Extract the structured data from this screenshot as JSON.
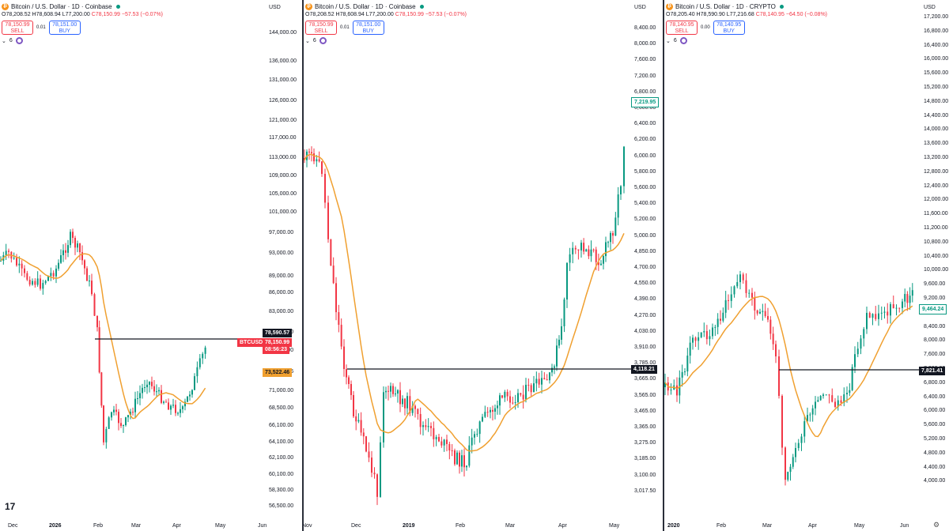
{
  "panels": [
    {
      "title": "Bitcoin / U.S. Dollar · 1D · Coinbase",
      "ohlc": {
        "o": "O78,208.52",
        "h": "H78,608.94",
        "l": "L77,200.00",
        "c": "C78,150.99",
        "chg": "−57.53 (−0.07%)"
      },
      "sell": {
        "price": "78,150.99",
        "label": "SELL"
      },
      "buy": {
        "price": "78,151.00",
        "label": "BUY"
      },
      "spread": "0.01",
      "indicator_count": "6",
      "currency": "USD",
      "price_ticks": [
        "144,000.00",
        "136,000.00",
        "131,000.00",
        "126,000.00",
        "121,000.00",
        "117,000.00",
        "113,000.00",
        "109,000.00",
        "105,000.00",
        "101,000.00",
        "97,000.00",
        "93,000.00",
        "89,000.00",
        "86,000.00",
        "83,000.00",
        "80,000.00",
        "77,000.00",
        "73,522.46",
        "71,000.00",
        "68,500.00",
        "66,100.00",
        "64,100.00",
        "62,100.00",
        "60,100.00",
        "58,300.00",
        "56,500.00"
      ],
      "date_ticks": [
        "Dec",
        "2026",
        "Feb",
        "Mar",
        "Apr",
        "May",
        "Jun"
      ],
      "tags": {
        "line_value": "78,590.57",
        "symbol": "BTCUSD",
        "last_price": "78,150.99",
        "countdown": "08:56:23",
        "ma_value": "73,522.46"
      }
    },
    {
      "title": "Bitcoin / U.S. Dollar · 1D · Coinbase",
      "ohlc": {
        "o": "O78,208.52",
        "h": "H78,608.94",
        "l": "L77,200.00",
        "c": "C78,150.99",
        "chg": "−57.53 (−0.07%)"
      },
      "sell": {
        "price": "78,150.99",
        "label": "SELL"
      },
      "buy": {
        "price": "78,151.00",
        "label": "BUY"
      },
      "spread": "0.01",
      "indicator_count": "6",
      "currency": "USD",
      "price_ticks": [
        "8,400.00",
        "8,000.00",
        "7,600.00",
        "7,200.00",
        "6,800.00",
        "6,600.00",
        "6,400.00",
        "6,200.00",
        "6,000.00",
        "5,800.00",
        "5,600.00",
        "5,400.00",
        "5,200.00",
        "5,000.00",
        "4,850.00",
        "4,700.00",
        "4,550.00",
        "4,390.00",
        "4,270.00",
        "4,030.00",
        "3,910.00",
        "3,785.00",
        "3,665.00",
        "3,565.00",
        "3,465.00",
        "3,365.00",
        "3,275.00",
        "3,185.00",
        "3,100.00",
        "3,017.50"
      ],
      "date_ticks": [
        "Nov",
        "Dec",
        "2019",
        "Feb",
        "Mar",
        "Apr",
        "May"
      ],
      "tags": {
        "top_value": "7,219.95",
        "line_value": "4,118.21"
      }
    },
    {
      "title": "Bitcoin / U.S. Dollar · 1D · CRYPTO",
      "ohlc": {
        "o": "O78,205.40",
        "h": "H78,590.90",
        "l": "L77,216.68",
        "c": "C78,140.95",
        "chg": "−64.50 (−0.08%)"
      },
      "sell": {
        "price": "78,140.95",
        "label": "SELL"
      },
      "buy": {
        "price": "78,140.95",
        "label": "BUY"
      },
      "spread": "0.00",
      "indicator_count": "6",
      "currency": "USD",
      "price_ticks": [
        "17,200.00",
        "16,800.00",
        "16,400.00",
        "16,000.00",
        "15,600.00",
        "15,200.00",
        "14,800.00",
        "14,400.00",
        "14,000.00",
        "13,600.00",
        "13,200.00",
        "12,800.00",
        "12,400.00",
        "12,000.00",
        "11,600.00",
        "11,200.00",
        "10,800.00",
        "10,400.00",
        "10,000.00",
        "9,600.00",
        "9,200.00",
        "8,800.00",
        "8,400.00",
        "8,000.00",
        "7,600.00",
        "7,200.00",
        "6,800.00",
        "6,400.00",
        "6,000.00",
        "5,600.00",
        "5,200.00",
        "4,800.00",
        "4,400.00",
        "4,000.00"
      ],
      "date_ticks": [
        "2020",
        "Feb",
        "Mar",
        "Apr",
        "May",
        "Jun"
      ],
      "tags": {
        "last_value": "9,464.24",
        "line_value": "7,821.41"
      }
    }
  ],
  "logo": "17",
  "colors": {
    "up": "#089981",
    "down": "#f23645",
    "ma": "#f0a030",
    "line": "#131722"
  }
}
